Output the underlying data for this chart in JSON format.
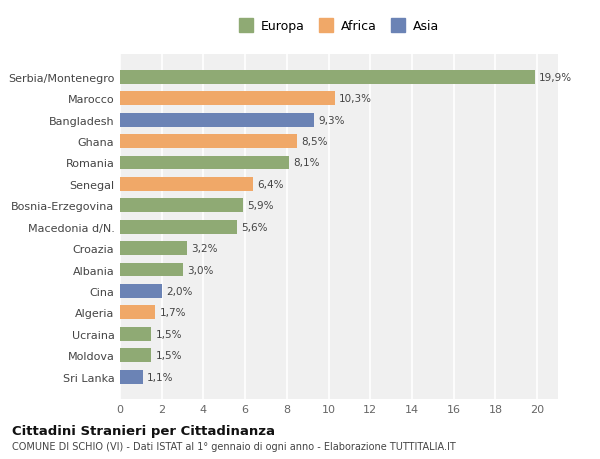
{
  "categories": [
    "Sri Lanka",
    "Moldova",
    "Ucraina",
    "Algeria",
    "Cina",
    "Albania",
    "Croazia",
    "Macedonia d/N.",
    "Bosnia-Erzegovina",
    "Senegal",
    "Romania",
    "Ghana",
    "Bangladesh",
    "Marocco",
    "Serbia/Montenegro"
  ],
  "values": [
    1.1,
    1.5,
    1.5,
    1.7,
    2.0,
    3.0,
    3.2,
    5.6,
    5.9,
    6.4,
    8.1,
    8.5,
    9.3,
    10.3,
    19.9
  ],
  "labels": [
    "1,1%",
    "1,5%",
    "1,5%",
    "1,7%",
    "2,0%",
    "3,0%",
    "3,2%",
    "5,6%",
    "5,9%",
    "6,4%",
    "8,1%",
    "8,5%",
    "9,3%",
    "10,3%",
    "19,9%"
  ],
  "colors": [
    "#6b83b5",
    "#8faa74",
    "#8faa74",
    "#f0a868",
    "#6b83b5",
    "#8faa74",
    "#8faa74",
    "#8faa74",
    "#8faa74",
    "#f0a868",
    "#8faa74",
    "#f0a868",
    "#6b83b5",
    "#f0a868",
    "#8faa74"
  ],
  "legend_labels": [
    "Europa",
    "Africa",
    "Asia"
  ],
  "legend_colors": [
    "#8faa74",
    "#f0a868",
    "#6b83b5"
  ],
  "title": "Cittadini Stranieri per Cittadinanza",
  "subtitle": "COMUNE DI SCHIO (VI) - Dati ISTAT al 1° gennaio di ogni anno - Elaborazione TUTTITALIA.IT",
  "xlim": [
    0,
    21
  ],
  "xticks": [
    0,
    2,
    4,
    6,
    8,
    10,
    12,
    14,
    16,
    18,
    20
  ],
  "background_color": "#ffffff",
  "plot_bg_color": "#f0f0f0"
}
